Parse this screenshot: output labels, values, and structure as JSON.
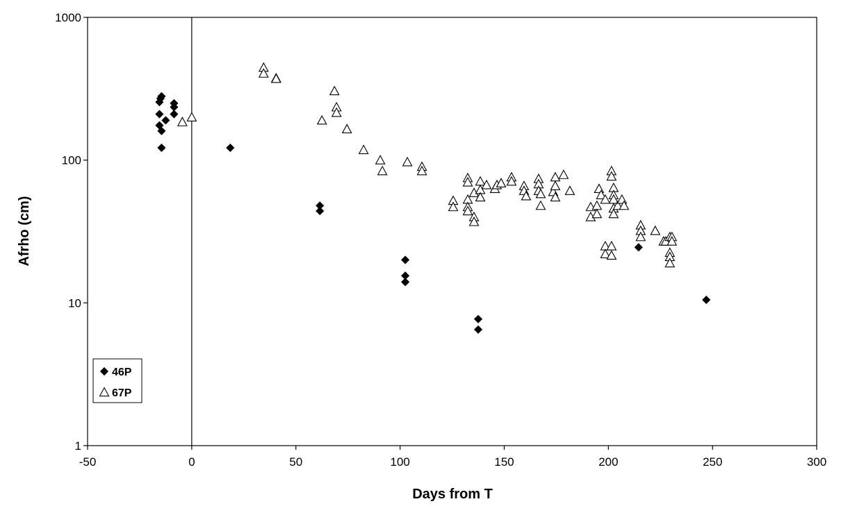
{
  "chart_data": {
    "type": "scatter",
    "xlabel": "Days from T",
    "ylabel": "Afrho (cm)",
    "xlim": [
      -50,
      300
    ],
    "ylim": [
      1,
      1000
    ],
    "yscale": "log",
    "x_ticks": [
      "-50",
      "0",
      "50",
      "100",
      "150",
      "200",
      "250",
      "300"
    ],
    "y_ticks": [
      "1",
      "10",
      "100",
      "1000"
    ],
    "grid": false,
    "reference_line_x": 0,
    "legend_position": "bottom-left",
    "series": [
      {
        "name": "46P",
        "marker": "filled-diamond",
        "color": "#000000",
        "points": [
          [
            -15.5,
            255
          ],
          [
            -15,
            270
          ],
          [
            -14.5,
            280
          ],
          [
            -15.5,
            210
          ],
          [
            -15.5,
            175
          ],
          [
            -14.5,
            160
          ],
          [
            -14.5,
            122
          ],
          [
            -12.5,
            190
          ],
          [
            -8.5,
            250
          ],
          [
            -8.5,
            235
          ],
          [
            -8.5,
            210
          ],
          [
            18.5,
            122
          ],
          [
            61.5,
            48
          ],
          [
            61.5,
            44
          ],
          [
            102.5,
            20
          ],
          [
            102.5,
            15.5
          ],
          [
            102.5,
            14
          ],
          [
            137.5,
            7.7
          ],
          [
            137.5,
            6.5
          ],
          [
            214.5,
            24.5
          ],
          [
            247,
            10.5
          ]
        ]
      },
      {
        "name": "67P",
        "marker": "open-triangle",
        "color": "#000000",
        "points": [
          [
            -4.5,
            185
          ],
          [
            0,
            200
          ],
          [
            34.5,
            445
          ],
          [
            34.5,
            405
          ],
          [
            40.5,
            375
          ],
          [
            40.5,
            372
          ],
          [
            62.5,
            190
          ],
          [
            68.5,
            305
          ],
          [
            69.5,
            235
          ],
          [
            69.5,
            215
          ],
          [
            74.5,
            165
          ],
          [
            82.5,
            118
          ],
          [
            90.5,
            100
          ],
          [
            91.5,
            84
          ],
          [
            103.5,
            97
          ],
          [
            110.5,
            90
          ],
          [
            110.5,
            84
          ],
          [
            125.5,
            52
          ],
          [
            125.5,
            47
          ],
          [
            132.5,
            75
          ],
          [
            132.5,
            70
          ],
          [
            132.5,
            53
          ],
          [
            132.5,
            47
          ],
          [
            132.5,
            44
          ],
          [
            135.5,
            59
          ],
          [
            135.5,
            40
          ],
          [
            135.5,
            37
          ],
          [
            138.5,
            71
          ],
          [
            138.5,
            62
          ],
          [
            138.5,
            55
          ],
          [
            141.5,
            67
          ],
          [
            145.5,
            63
          ],
          [
            146.5,
            67
          ],
          [
            148.5,
            69
          ],
          [
            153.5,
            76
          ],
          [
            153.5,
            71
          ],
          [
            159.5,
            66
          ],
          [
            159.5,
            61
          ],
          [
            160.5,
            56
          ],
          [
            166.5,
            74
          ],
          [
            166.5,
            68
          ],
          [
            166.5,
            61
          ],
          [
            167.5,
            58
          ],
          [
            167.5,
            48
          ],
          [
            173.5,
            60
          ],
          [
            174.5,
            76
          ],
          [
            174.5,
            66
          ],
          [
            174.5,
            55
          ],
          [
            178.5,
            79
          ],
          [
            181.5,
            61
          ],
          [
            191.5,
            47
          ],
          [
            191.5,
            40
          ],
          [
            194.5,
            48
          ],
          [
            194.5,
            42
          ],
          [
            195.5,
            63
          ],
          [
            196.5,
            57
          ],
          [
            198.5,
            53
          ],
          [
            198.5,
            25
          ],
          [
            198.5,
            22
          ],
          [
            201.5,
            84
          ],
          [
            201.5,
            77
          ],
          [
            201.5,
            25
          ],
          [
            201.5,
            21.5
          ],
          [
            202.5,
            64
          ],
          [
            202.5,
            57
          ],
          [
            202.5,
            53
          ],
          [
            202.5,
            46
          ],
          [
            202.5,
            42
          ],
          [
            204.5,
            48
          ],
          [
            206.5,
            53
          ],
          [
            207.5,
            48
          ],
          [
            215.5,
            35
          ],
          [
            215.5,
            32
          ],
          [
            215.5,
            29
          ],
          [
            222.5,
            32
          ],
          [
            226.5,
            27
          ],
          [
            227.5,
            27
          ],
          [
            229.5,
            29
          ],
          [
            229.5,
            22.5
          ],
          [
            229.5,
            21
          ],
          [
            229.5,
            19
          ],
          [
            230.5,
            29
          ],
          [
            230.5,
            27
          ]
        ]
      }
    ]
  }
}
